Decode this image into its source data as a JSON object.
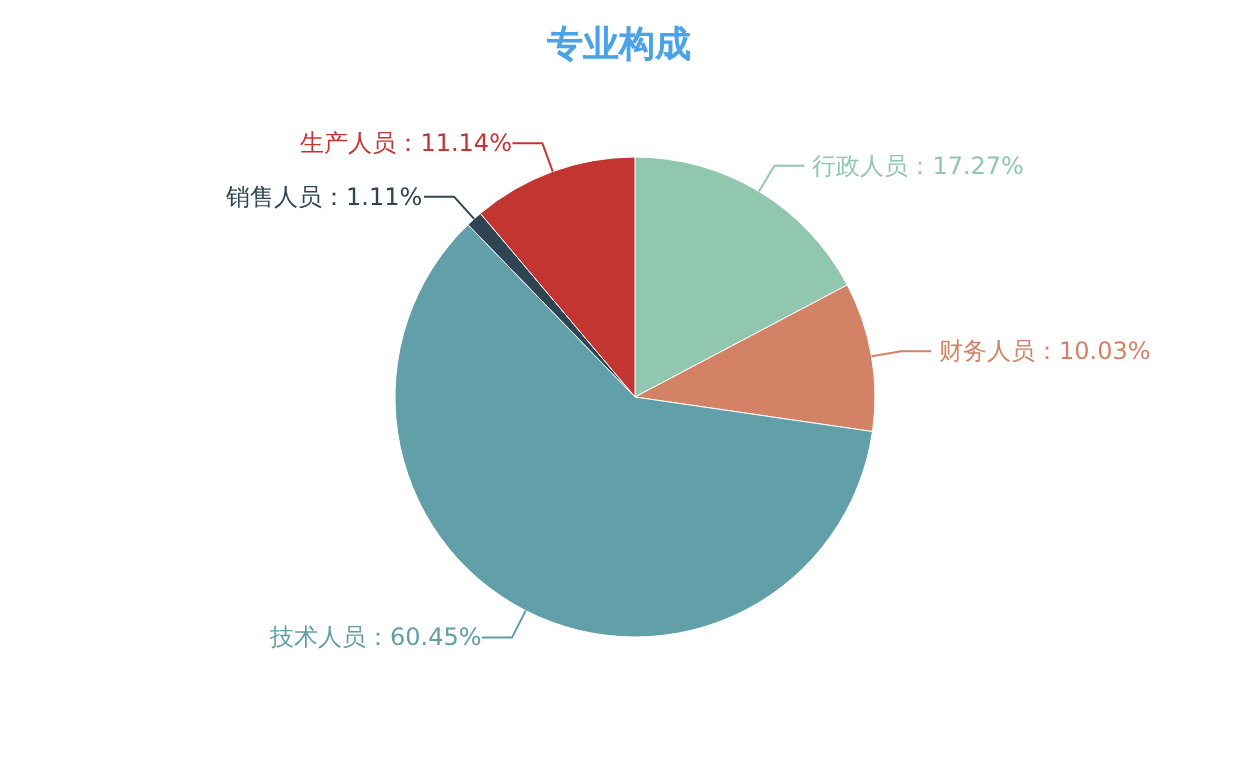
{
  "chart_data": {
    "type": "pie",
    "title": "专业构成",
    "categories": [
      "行政人员",
      "财务人员",
      "技术人员",
      "销售人员",
      "生产人员"
    ],
    "values": [
      17.27,
      10.03,
      60.45,
      1.11,
      11.14
    ],
    "value_labels": [
      "：17.27%",
      "：10.03%",
      "：60.45%",
      "：1.11%",
      "：11.14%"
    ],
    "colors": [
      "#91c7ae",
      "#d48265",
      "#61a0a8",
      "#2f4554",
      "#c23531"
    ]
  }
}
